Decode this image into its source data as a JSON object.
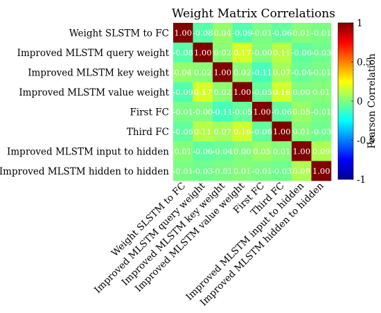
{
  "chart_data": {
    "type": "heatmap",
    "title": "Weight Matrix Correlations",
    "labels": [
      "Weight SLSTM to FC",
      "Improved MLSTM query weight",
      "Improved MLSTM key weight",
      "Improved MLSTM value weight",
      "First FC",
      "Third FC",
      "Improved MLSTM input to hidden",
      "Improved MLSTM hidden to hidden"
    ],
    "matrix": [
      [
        1.0,
        -0.08,
        0.04,
        -0.09,
        -0.01,
        -0.06,
        0.01,
        -0.01
      ],
      [
        -0.08,
        1.0,
        0.02,
        0.17,
        -0.0,
        0.11,
        -0.06,
        -0.03
      ],
      [
        0.04,
        0.02,
        1.0,
        0.02,
        -0.11,
        0.07,
        -0.04,
        -0.01
      ],
      [
        -0.09,
        0.17,
        0.02,
        1.0,
        -0.05,
        0.16,
        0.0,
        0.01
      ],
      [
        -0.01,
        -0.0,
        -0.11,
        -0.05,
        1.0,
        -0.06,
        0.05,
        -0.01
      ],
      [
        -0.06,
        0.11,
        0.07,
        0.16,
        -0.06,
        1.0,
        0.01,
        -0.03
      ],
      [
        0.01,
        -0.06,
        -0.04,
        0.0,
        0.05,
        0.01,
        1.0,
        0.09
      ],
      [
        -0.01,
        -0.03,
        -0.01,
        0.01,
        -0.01,
        -0.03,
        0.09,
        1.0
      ]
    ],
    "cell_text": [
      [
        "1.00",
        "-0.08",
        "0.04",
        "-0.09",
        "-0.01",
        "-0.06",
        "0.01",
        "-0.01"
      ],
      [
        "-0.08",
        "1.00",
        "0.02",
        "0.17",
        "-0.00",
        "0.11",
        "-0.06",
        "-0.03"
      ],
      [
        "0.04",
        "0.02",
        "1.00",
        "0.02",
        "-0.11",
        "0.07",
        "-0.04",
        "-0.01"
      ],
      [
        "-0.09",
        "0.17",
        "0.02",
        "1.00",
        "-0.05",
        "0.16",
        "0.00",
        "0.01"
      ],
      [
        "-0.01",
        "-0.00",
        "-0.11",
        "-0.05",
        "1.00",
        "-0.06",
        "0.05",
        "-0.01"
      ],
      [
        "-0.06",
        "0.11",
        "0.07",
        "0.16",
        "-0.06",
        "1.00",
        "0.01",
        "-0.03"
      ],
      [
        "0.01",
        "-0.06",
        "-0.04",
        "0.00",
        "0.05",
        "0.01",
        "1.00",
        "0.09"
      ],
      [
        "-0.01",
        "-0.03",
        "-0.01",
        "0.01",
        "-0.01",
        "-0.03",
        "0.09",
        "1.00"
      ]
    ],
    "colormap": "jet",
    "clim": [
      -1,
      1
    ],
    "colorbar": {
      "label": "Pearson Correlation",
      "ticks": [
        1,
        0.5,
        0,
        -0.5,
        -1
      ],
      "tick_labels": [
        "1",
        "0.5",
        "0",
        "-0.5",
        "-1"
      ]
    },
    "grid": false
  }
}
